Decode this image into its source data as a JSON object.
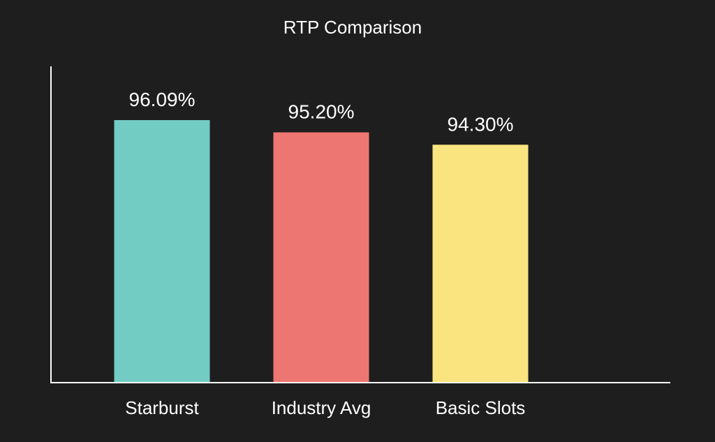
{
  "chart_data": {
    "type": "bar",
    "title": "RTP Comparison",
    "categories": [
      "Starburst",
      "Industry Avg",
      "Basic Slots"
    ],
    "values": [
      96.09,
      95.2,
      94.3
    ],
    "value_labels": [
      "96.09%",
      "95.20%",
      "94.30%"
    ],
    "colors": [
      "#72ccc4",
      "#ee7672",
      "#f9e47f"
    ],
    "xlabel": "",
    "ylabel": "",
    "ylim": [
      77.0,
      100.0
    ],
    "grid": false,
    "legend": "none"
  },
  "theme": {
    "background": "#1e1e1e",
    "axis_color": "#ffffff",
    "text_color": "#ffffff"
  }
}
